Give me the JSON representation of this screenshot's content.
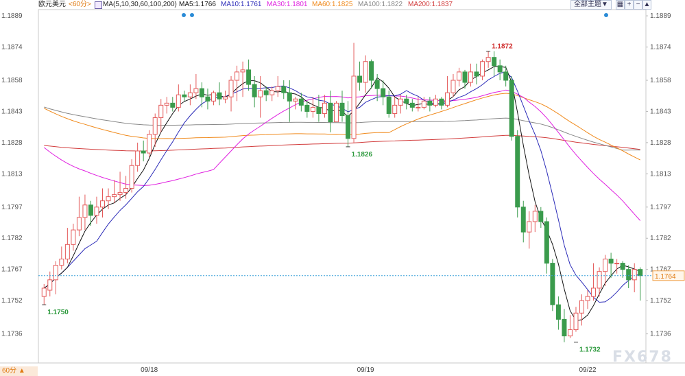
{
  "header": {
    "symbol": "欧元美元",
    "timeframe": "<60分>",
    "ma_label": "MA(5,10,30,60,100,200)",
    "ma_values": [
      {
        "text": "MA5:1.1766",
        "color": "#111111"
      },
      {
        "text": "MA10:1.1761",
        "color": "#2b2bb8"
      },
      {
        "text": "MA30:1.1801",
        "color": "#e020e0"
      },
      {
        "text": "MA60:1.1825",
        "color": "#f08a1c"
      },
      {
        "text": "MA100:1.1822",
        "color": "#888888"
      },
      {
        "text": "MA200:1.1837",
        "color": "#d23c3c"
      }
    ],
    "theme_button": "全部主题▼",
    "icons": [
      "grid-icon",
      "zoom-in-icon",
      "zoom-out-icon",
      "scroll-up-icon"
    ]
  },
  "timeframe_badge": "60分 ▲",
  "watermark": "FX678",
  "chart_data": {
    "type": "candlestick",
    "y_ticks": [
      "1.1889",
      "1.1874",
      "1.1858",
      "1.1843",
      "1.1828",
      "1.1813",
      "1.1797",
      "1.1782",
      "1.1767",
      "1.1752",
      "1.1736"
    ],
    "ylim": [
      1.1722,
      1.1892
    ],
    "x_ticks": [
      {
        "label": "09/18",
        "index": 18
      },
      {
        "label": "09/19",
        "index": 55
      },
      {
        "label": "09/22",
        "index": 93
      }
    ],
    "current_price": "1.1764",
    "current_value": 1.1764,
    "annotations": [
      {
        "text": "1.1750",
        "index": 0,
        "value": 1.175,
        "side": "below",
        "color": "#2e9a3e"
      },
      {
        "text": "1.1826",
        "index": 52,
        "value": 1.1826,
        "side": "below",
        "color": "#2e9a3e"
      },
      {
        "text": "1.1872",
        "index": 76,
        "value": 1.1872,
        "side": "above",
        "color": "#d03030"
      },
      {
        "text": "1.1732",
        "index": 91,
        "value": 1.1732,
        "side": "below",
        "color": "#2e9a3e"
      }
    ],
    "candles": [
      [
        1.1754,
        1.1758,
        1.176,
        1.175
      ],
      [
        1.1757,
        1.1762,
        1.1766,
        1.1754
      ],
      [
        1.1762,
        1.1769,
        1.1771,
        1.1755
      ],
      [
        1.1769,
        1.1772,
        1.1778,
        1.1767
      ],
      [
        1.1772,
        1.1779,
        1.1787,
        1.177
      ],
      [
        1.1779,
        1.1786,
        1.1789,
        1.1776
      ],
      [
        1.1786,
        1.1792,
        1.1802,
        1.1783
      ],
      [
        1.1792,
        1.1798,
        1.1803,
        1.1786
      ],
      [
        1.1798,
        1.1793,
        1.18,
        1.1788
      ],
      [
        1.1793,
        1.1797,
        1.1802,
        1.1789
      ],
      [
        1.1797,
        1.18,
        1.1806,
        1.1792
      ],
      [
        1.18,
        1.1802,
        1.1806,
        1.1796
      ],
      [
        1.1802,
        1.1803,
        1.181,
        1.1799
      ],
      [
        1.1803,
        1.1804,
        1.1814,
        1.18
      ],
      [
        1.1804,
        1.1806,
        1.1812,
        1.1801
      ],
      [
        1.1806,
        1.1817,
        1.182,
        1.1804
      ],
      [
        1.1817,
        1.1824,
        1.1828,
        1.1814
      ],
      [
        1.1824,
        1.1823,
        1.1829,
        1.1819
      ],
      [
        1.1823,
        1.1832,
        1.1834,
        1.1821
      ],
      [
        1.1832,
        1.184,
        1.1842,
        1.1826
      ],
      [
        1.184,
        1.1846,
        1.1849,
        1.1833
      ],
      [
        1.1846,
        1.1847,
        1.185,
        1.1842
      ],
      [
        1.1847,
        1.1845,
        1.185,
        1.1843
      ],
      [
        1.1845,
        1.1851,
        1.1856,
        1.1843
      ],
      [
        1.1851,
        1.185,
        1.1853,
        1.1848
      ],
      [
        1.185,
        1.1852,
        1.1856,
        1.1846
      ],
      [
        1.1852,
        1.1854,
        1.1861,
        1.1849
      ],
      [
        1.1854,
        1.185,
        1.1857,
        1.1845
      ],
      [
        1.185,
        1.1848,
        1.1854,
        1.1844
      ],
      [
        1.1848,
        1.1852,
        1.1853,
        1.1846
      ],
      [
        1.1852,
        1.1849,
        1.1857,
        1.1846
      ],
      [
        1.1849,
        1.185,
        1.1853,
        1.1847
      ],
      [
        1.185,
        1.1858,
        1.186,
        1.1843
      ],
      [
        1.1858,
        1.1862,
        1.1865,
        1.1848
      ],
      [
        1.1862,
        1.1863,
        1.1867,
        1.185
      ],
      [
        1.1863,
        1.1856,
        1.1868,
        1.1853
      ],
      [
        1.1856,
        1.185,
        1.186,
        1.1845
      ],
      [
        1.185,
        1.1853,
        1.186,
        1.184
      ],
      [
        1.1853,
        1.1851,
        1.1855,
        1.1848
      ],
      [
        1.1851,
        1.1853,
        1.1855,
        1.1848
      ],
      [
        1.1853,
        1.1855,
        1.186,
        1.185
      ],
      [
        1.1855,
        1.1852,
        1.1858,
        1.1849
      ],
      [
        1.1852,
        1.1848,
        1.1858,
        1.1838
      ],
      [
        1.1848,
        1.1849,
        1.185,
        1.1844
      ],
      [
        1.1849,
        1.1846,
        1.1852,
        1.1843
      ],
      [
        1.1846,
        1.1843,
        1.1848,
        1.184
      ],
      [
        1.1843,
        1.1845,
        1.185,
        1.184
      ],
      [
        1.1845,
        1.1842,
        1.1851,
        1.1838
      ],
      [
        1.1842,
        1.1847,
        1.1851,
        1.184
      ],
      [
        1.1847,
        1.1838,
        1.1853,
        1.1833
      ],
      [
        1.1838,
        1.1847,
        1.1848,
        1.1838
      ],
      [
        1.1847,
        1.1841,
        1.1853,
        1.1838
      ],
      [
        1.1841,
        1.183,
        1.1848,
        1.1826
      ],
      [
        1.183,
        1.186,
        1.1876,
        1.1828
      ],
      [
        1.186,
        1.1857,
        1.1867,
        1.1853
      ],
      [
        1.1857,
        1.1867,
        1.187,
        1.1852
      ],
      [
        1.1867,
        1.1858,
        1.1868,
        1.1854
      ],
      [
        1.1858,
        1.1854,
        1.1861,
        1.1848
      ],
      [
        1.1854,
        1.185,
        1.1858,
        1.1846
      ],
      [
        1.185,
        1.1842,
        1.1853,
        1.184
      ],
      [
        1.1842,
        1.1846,
        1.185,
        1.184
      ],
      [
        1.1846,
        1.1849,
        1.1851,
        1.1842
      ],
      [
        1.1849,
        1.1847,
        1.1851,
        1.1844
      ],
      [
        1.1847,
        1.1845,
        1.1849,
        1.1843
      ],
      [
        1.1845,
        1.1845,
        1.185,
        1.1843
      ],
      [
        1.1845,
        1.1848,
        1.185,
        1.1844
      ],
      [
        1.1848,
        1.1846,
        1.185,
        1.1843
      ],
      [
        1.1846,
        1.1849,
        1.1851,
        1.1845
      ],
      [
        1.1849,
        1.1846,
        1.185,
        1.1844
      ],
      [
        1.1846,
        1.1852,
        1.186,
        1.1845
      ],
      [
        1.1852,
        1.1858,
        1.1861,
        1.185
      ],
      [
        1.1858,
        1.1862,
        1.1864,
        1.1855
      ],
      [
        1.1862,
        1.1857,
        1.1863,
        1.1854
      ],
      [
        1.1857,
        1.1862,
        1.1866,
        1.1855
      ],
      [
        1.1862,
        1.186,
        1.1866,
        1.1856
      ],
      [
        1.186,
        1.1867,
        1.1868,
        1.1858
      ],
      [
        1.1867,
        1.1869,
        1.1872,
        1.1864
      ],
      [
        1.1869,
        1.1865,
        1.1872,
        1.186
      ],
      [
        1.1865,
        1.1862,
        1.1868,
        1.1858
      ],
      [
        1.1862,
        1.1858,
        1.1865,
        1.1855
      ],
      [
        1.1858,
        1.1831,
        1.186,
        1.1829
      ],
      [
        1.1831,
        1.1797,
        1.1834,
        1.1792
      ],
      [
        1.1797,
        1.1785,
        1.18,
        1.178
      ],
      [
        1.1785,
        1.179,
        1.1795,
        1.1777
      ],
      [
        1.179,
        1.1795,
        1.1798,
        1.1785
      ],
      [
        1.1795,
        1.179,
        1.1797,
        1.1787
      ],
      [
        1.179,
        1.177,
        1.1792,
        1.1765
      ],
      [
        1.177,
        1.175,
        1.1772,
        1.1747
      ],
      [
        1.175,
        1.1743,
        1.1754,
        1.1738
      ],
      [
        1.1743,
        1.1735,
        1.1748,
        1.1732
      ],
      [
        1.1735,
        1.1738,
        1.1745,
        1.1734
      ],
      [
        1.1738,
        1.1746,
        1.1749,
        1.1737
      ],
      [
        1.1746,
        1.1752,
        1.1755,
        1.174
      ],
      [
        1.1752,
        1.1754,
        1.1757,
        1.1748
      ],
      [
        1.1754,
        1.1758,
        1.177,
        1.1752
      ],
      [
        1.1758,
        1.1766,
        1.1768,
        1.1754
      ],
      [
        1.1766,
        1.1772,
        1.1774,
        1.1759
      ],
      [
        1.1772,
        1.177,
        1.1775,
        1.1763
      ],
      [
        1.177,
        1.177,
        1.1772,
        1.1765
      ],
      [
        1.177,
        1.1767,
        1.1771,
        1.1763
      ],
      [
        1.1767,
        1.1762,
        1.1769,
        1.1758
      ],
      [
        1.1762,
        1.1767,
        1.177,
        1.1756
      ],
      [
        1.1767,
        1.1764,
        1.1768,
        1.1752
      ]
    ]
  }
}
